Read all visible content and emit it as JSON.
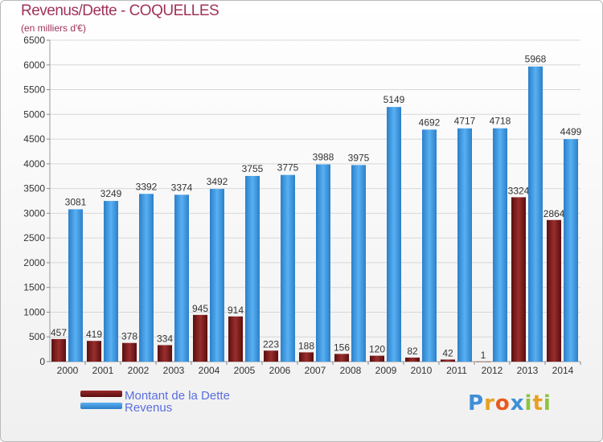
{
  "header": {
    "title": "Revenus/Dette - COQUELLES",
    "subtitle": "(en milliers d'€)"
  },
  "chart_data": {
    "type": "bar",
    "categories": [
      "2000",
      "2001",
      "2002",
      "2003",
      "2004",
      "2005",
      "2006",
      "2007",
      "2008",
      "2009",
      "2010",
      "2011",
      "2012",
      "2013",
      "2014"
    ],
    "series": [
      {
        "name": "Montant de la Dette",
        "color": "#7a1c1c",
        "values": [
          457,
          419,
          378,
          334,
          945,
          914,
          223,
          188,
          156,
          120,
          82,
          42,
          1,
          3324,
          2864
        ],
        "labels": [
          "457",
          "419",
          "378",
          "334",
          "945",
          "914",
          "223",
          "188",
          "156",
          "120",
          "82",
          "42",
          "1",
          "3324",
          "2864"
        ]
      },
      {
        "name": "Revenus",
        "color": "#3d9ae6",
        "values": [
          3081,
          3249,
          3392,
          3374,
          3492,
          3755,
          3775,
          3988,
          3975,
          5149,
          4692,
          4717,
          4718,
          5968,
          4499
        ],
        "labels": [
          "3081",
          "3249",
          "3392",
          "3374",
          "3492",
          "3755",
          "3775",
          "3988",
          "3975",
          "5149",
          "4692",
          "4717",
          "4718",
          "5968",
          "4499"
        ]
      }
    ],
    "yticks": [
      0,
      500,
      1000,
      1500,
      2000,
      2500,
      3000,
      3500,
      4000,
      4500,
      5000,
      5500,
      6000,
      6500
    ],
    "ylim": [
      0,
      6500
    ],
    "grid": true,
    "legend_position": "bottom-left"
  },
  "legend": [
    {
      "label": "Montant de la Dette",
      "color": "#7a1c1c"
    },
    {
      "label": "Revenus",
      "color": "#3d9ae6"
    }
  ],
  "logo": {
    "text": "Proxiti",
    "letters": [
      "P",
      "r",
      "o",
      "x",
      "i",
      "t",
      "i"
    ],
    "colors": [
      "#3d8fd8",
      "#e8a020",
      "#e85a20",
      "#3d8fd8",
      "#8cc43c",
      "#e8a020",
      "#8cc43c"
    ]
  }
}
